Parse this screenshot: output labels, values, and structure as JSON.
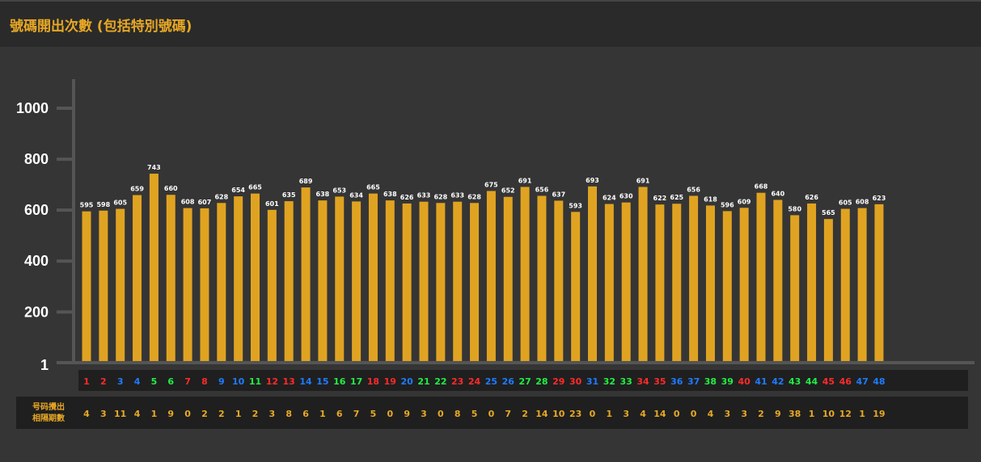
{
  "header": {
    "title": "號碼開出次數 (包括特別號碼)"
  },
  "colors": {
    "background": "#353535",
    "header_bg": "#2a2a2a",
    "accent": "#e8a824",
    "bar": "#e0a321",
    "axis": "#555555",
    "label_row_bg": "#1f1f1f",
    "red": "#ff2a2a",
    "blue": "#1e7bff",
    "green": "#22ee44"
  },
  "chart_data": {
    "type": "bar",
    "categories": [
      "1",
      "2",
      "3",
      "4",
      "5",
      "6",
      "7",
      "8",
      "9",
      "10",
      "11",
      "12",
      "13",
      "14",
      "15",
      "16",
      "17",
      "18",
      "19",
      "20",
      "21",
      "22",
      "23",
      "24",
      "25",
      "26",
      "27",
      "28",
      "29",
      "30",
      "31",
      "32",
      "33",
      "34",
      "35",
      "36",
      "37",
      "38",
      "39",
      "40",
      "41",
      "42",
      "43",
      "44",
      "45",
      "46",
      "47",
      "48"
    ],
    "category_colors": [
      "red",
      "red",
      "blue",
      "blue",
      "green",
      "green",
      "red",
      "red",
      "blue",
      "blue",
      "green",
      "red",
      "red",
      "blue",
      "blue",
      "green",
      "green",
      "red",
      "red",
      "blue",
      "green",
      "green",
      "red",
      "red",
      "blue",
      "blue",
      "green",
      "green",
      "red",
      "red",
      "blue",
      "green",
      "green",
      "red",
      "red",
      "blue",
      "blue",
      "green",
      "green",
      "red",
      "blue",
      "blue",
      "green",
      "green",
      "red",
      "red",
      "blue",
      "blue"
    ],
    "values": [
      595,
      598,
      605,
      659,
      743,
      660,
      608,
      607,
      628,
      654,
      665,
      601,
      635,
      689,
      638,
      653,
      634,
      665,
      638,
      626,
      633,
      628,
      633,
      628,
      675,
      652,
      691,
      656,
      637,
      593,
      693,
      624,
      630,
      691,
      622,
      625,
      656,
      618,
      596,
      609,
      668,
      640,
      580,
      626,
      565,
      605,
      608,
      623
    ],
    "yticks": [
      1,
      200,
      400,
      600,
      800,
      1000
    ],
    "ylim": [
      1,
      1100
    ],
    "grid": false,
    "legend": "none",
    "interval_row_title": [
      "号码攪出",
      "相隔期數"
    ],
    "intervals": [
      "4",
      "3",
      "11",
      "4",
      "1",
      "9",
      "0",
      "2",
      "2",
      "1",
      "2",
      "3",
      "8",
      "6",
      "1",
      "6",
      "7",
      "5",
      "0",
      "9",
      "3",
      "0",
      "8",
      "5",
      "0",
      "7",
      "2",
      "14",
      "10",
      "23",
      "0",
      "1",
      "3",
      "4",
      "14",
      "0",
      "0",
      "4",
      "3",
      "3",
      "2",
      "9",
      "38",
      "1",
      "10",
      "12",
      "1",
      "19"
    ]
  }
}
